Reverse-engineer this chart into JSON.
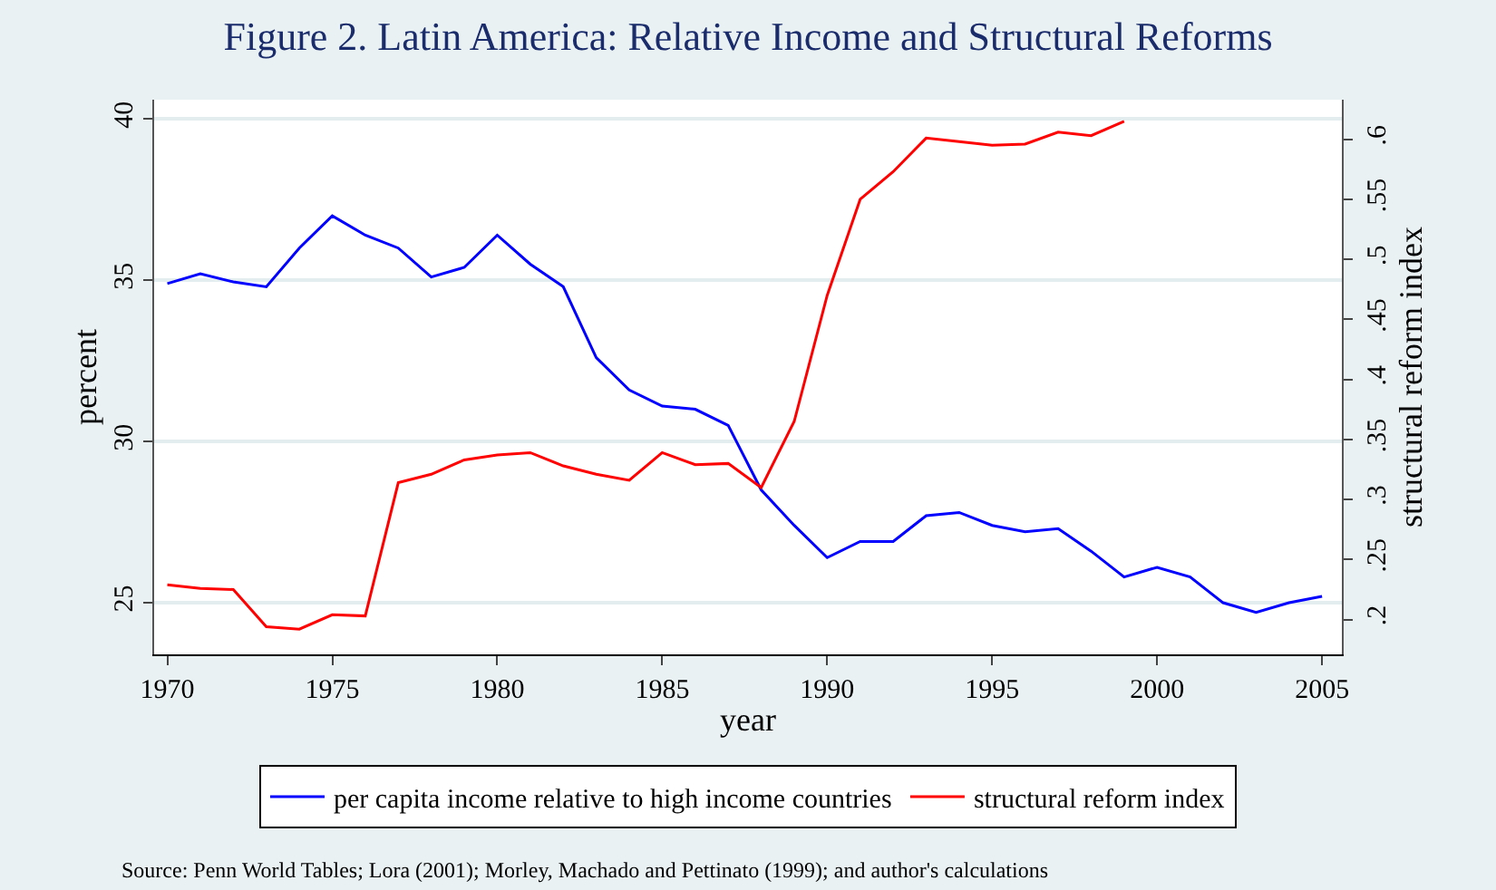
{
  "chart_data": {
    "type": "line",
    "title": "Figure 2. Latin America: Relative Income and Structural Reforms",
    "xlabel": "year",
    "ylabel": "percent",
    "y2label": "structural reform index",
    "x": [
      1970,
      1971,
      1972,
      1973,
      1974,
      1975,
      1976,
      1977,
      1978,
      1979,
      1980,
      1981,
      1982,
      1983,
      1984,
      1985,
      1986,
      1987,
      1988,
      1989,
      1990,
      1991,
      1992,
      1993,
      1994,
      1995,
      1996,
      1997,
      1998,
      1999,
      2000,
      2001,
      2002,
      2003,
      2004,
      2005
    ],
    "series": [
      {
        "name": "per capita income relative to high income countries",
        "color": "#0000ff",
        "values": [
          34.9,
          35.2,
          34.95,
          34.8,
          36.0,
          37.0,
          36.4,
          36.0,
          35.1,
          35.4,
          36.4,
          35.5,
          34.8,
          32.6,
          31.6,
          31.1,
          31.0,
          30.5,
          28.5,
          27.4,
          26.4,
          26.9,
          26.9,
          27.7,
          27.8,
          27.4,
          27.2,
          27.3,
          26.6,
          25.8,
          26.1,
          25.8,
          25.0,
          24.7,
          25.0,
          25.2
        ]
      },
      {
        "name": "structural reform index",
        "color": "#ff0000",
        "axis": "y2",
        "values": [
          0.229,
          0.226,
          0.225,
          0.194,
          0.192,
          0.204,
          0.203,
          0.314,
          0.321,
          0.333,
          0.337,
          0.339,
          0.328,
          0.321,
          0.316,
          0.339,
          0.329,
          0.33,
          0.31,
          0.365,
          0.47,
          0.55,
          0.573,
          0.601,
          0.598,
          0.595,
          0.596,
          0.606,
          0.603,
          0.615,
          null,
          null,
          null,
          null,
          null,
          null
        ]
      }
    ],
    "xlim": [
      1969.6,
      2005.6
    ],
    "xticks": [
      1970,
      1975,
      1980,
      1985,
      1990,
      1995,
      2000,
      2005
    ],
    "ylim": [
      23.4,
      40.6
    ],
    "yticks": [
      25,
      30,
      35,
      40
    ],
    "y2lim": [
      0.171,
      0.633
    ],
    "y2ticks": [
      {
        "value": 0.2,
        "label": ".2"
      },
      {
        "value": 0.25,
        "label": ".25"
      },
      {
        "value": 0.3,
        "label": ".3"
      },
      {
        "value": 0.35,
        "label": ".35"
      },
      {
        "value": 0.4,
        "label": ".4"
      },
      {
        "value": 0.45,
        "label": ".45"
      },
      {
        "value": 0.5,
        "label": ".5"
      },
      {
        "value": 0.55,
        "label": ".55"
      },
      {
        "value": 0.6,
        "label": ".6"
      }
    ],
    "grid": "y",
    "legend": "bottom",
    "marker": "none",
    "line_style": "solid",
    "annotations": [
      "Source: Penn World Tables; Lora (2001); Morley, Machado and Pettinato (1999); and author's calculations"
    ]
  }
}
